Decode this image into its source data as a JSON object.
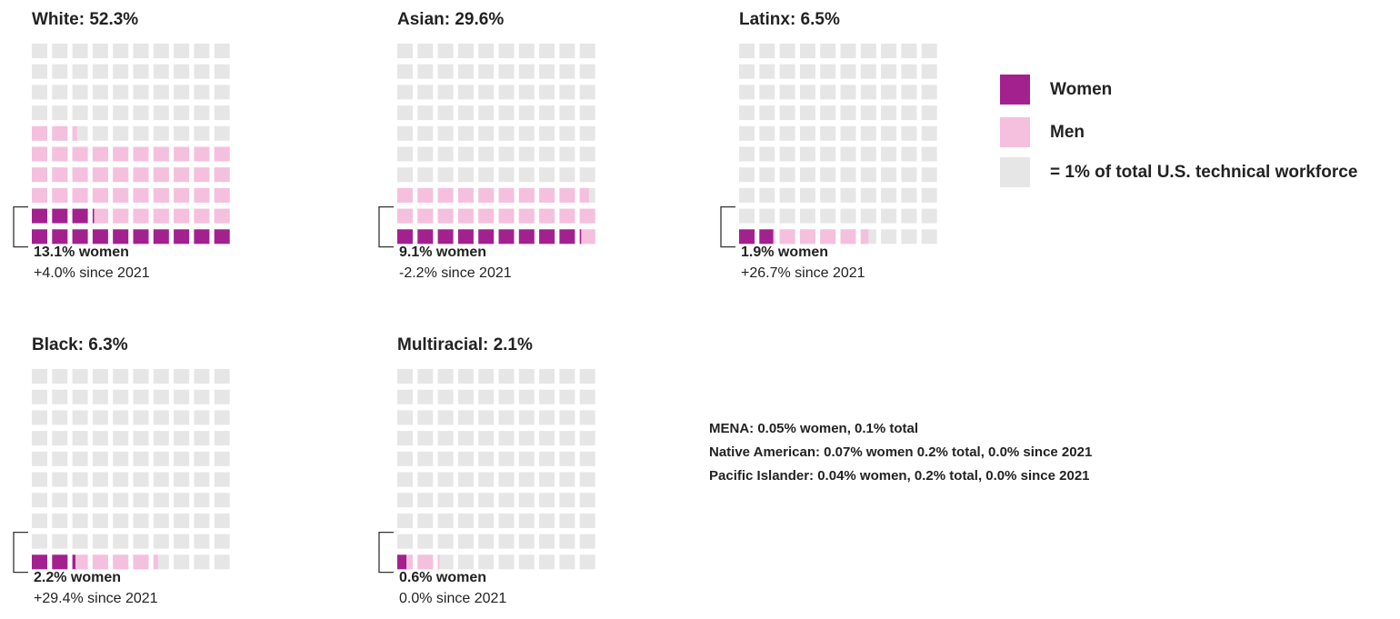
{
  "chart_data": {
    "type": "waffle",
    "groups": [
      {
        "title": "White: 52.3%",
        "total": 52.3,
        "women": 13.1,
        "women_label": "13.1% women",
        "change_label": "+4.0% since 2021"
      },
      {
        "title": "Asian: 29.6%",
        "total": 29.6,
        "women": 9.1,
        "women_label": "9.1% women",
        "change_label": "-2.2% since 2021"
      },
      {
        "title": "Latinx: 6.5%",
        "total": 6.5,
        "women": 1.9,
        "women_label": "1.9% women",
        "change_label": "+26.7% since 2021"
      },
      {
        "title": "Black: 6.3%",
        "total": 6.3,
        "women": 2.2,
        "women_label": "2.2% women",
        "change_label": "+29.4% since 2021"
      },
      {
        "title": "Multiracial: 2.1%",
        "total": 2.1,
        "women": 0.6,
        "women_label": "0.6% women",
        "change_label": "0.0% since 2021"
      }
    ],
    "legend": {
      "women": "Women",
      "men": "Men",
      "unit": "= 1% of total U.S. technical workforce"
    },
    "colors": {
      "women": "#a3218f",
      "men": "#f5c0dd",
      "empty": "#e6e6e6"
    },
    "notes": [
      "MENA: 0.05% women, 0.1% total",
      "Native American: 0.07% women 0.2% total, 0.0% since 2021",
      "Pacific Islander: 0.04% women, 0.2% total, 0.0% since 2021"
    ]
  }
}
